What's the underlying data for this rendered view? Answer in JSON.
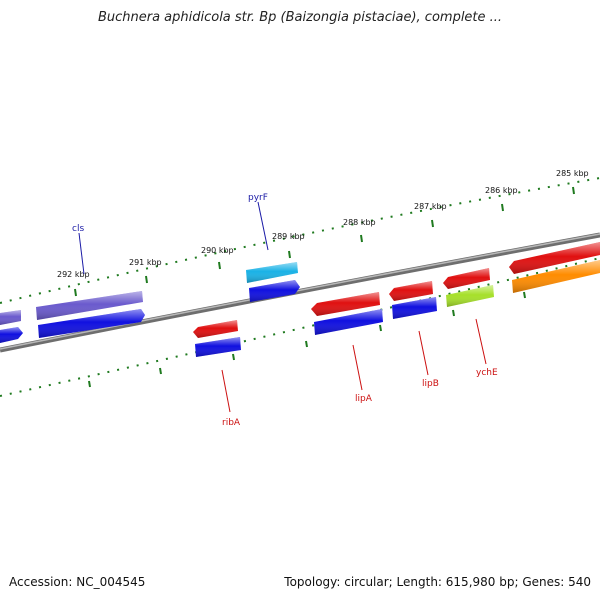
{
  "title": "Buchnera aphidicola str. Bp (Baizongia pistaciae), complete ...",
  "footer": {
    "accession": "Accession: NC_004545",
    "summary": "Topology: circular; Length: 615,980 bp; Genes: 540"
  },
  "colors": {
    "backbone": "#808080",
    "tick": "#1f7a1f",
    "forward_label": "#1a1aa6",
    "reverse_label": "#cc1111",
    "blue": "#1010e0",
    "violet": "#6a5acd",
    "cyan": "#1ab2e6",
    "red": "#e01010",
    "green": "#a6e02a",
    "orange": "#ff8c00"
  },
  "tick_labels": [
    "292 kbp",
    "291 kbp",
    "290 kbp",
    "289 kbp",
    "288 kbp",
    "287 kbp",
    "286 kbp",
    "285 kbp"
  ],
  "gene_labels": {
    "cls": "cls",
    "pyrF": "pyrF",
    "ribA": "ribA",
    "lipA": "lipA",
    "lipB": "lipB",
    "ychE": "ychE"
  }
}
